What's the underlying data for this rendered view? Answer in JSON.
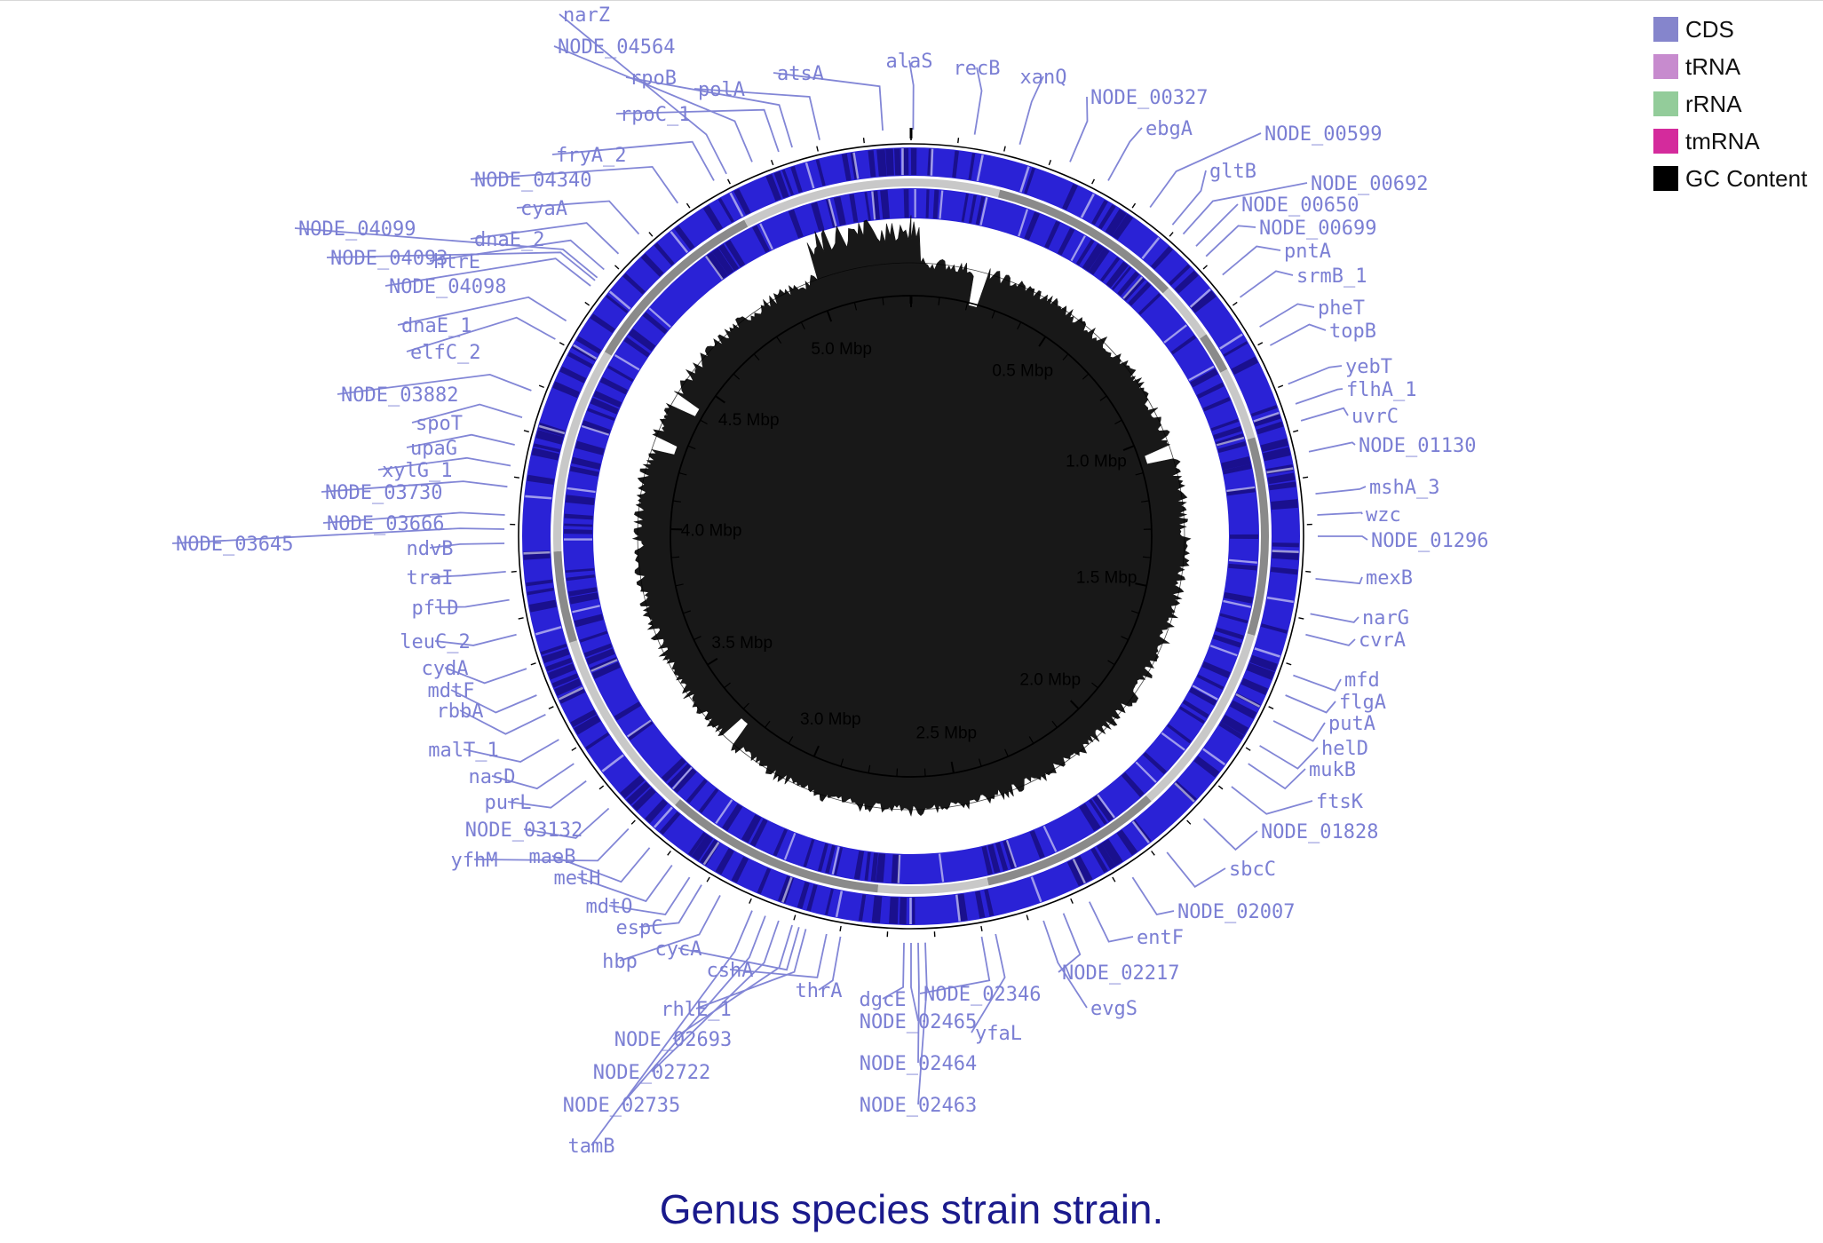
{
  "title": "Genus species strain strain.",
  "legend": [
    {
      "label": "CDS",
      "color": "#8585cc"
    },
    {
      "label": "tRNA",
      "color": "#c78bce"
    },
    {
      "label": "rRNA",
      "color": "#93cc9a"
    },
    {
      "label": "tmRNA",
      "color": "#d42b9c"
    },
    {
      "label": "GC Content",
      "color": "#000000"
    }
  ],
  "colors": {
    "cds_track": "#2a22d6",
    "cds_dark": "#1a108e",
    "gc": "#000000",
    "contig_light": "#c8c8c8",
    "contig_dark": "#8a8a8a",
    "label": "#7b7fd4"
  },
  "genome_size_mbp": 5.3,
  "ruler_labels": [
    "0.5 Mbp",
    "1.0 Mbp",
    "1.5 Mbp",
    "2.0 Mbp",
    "2.5 Mbp",
    "3.0 Mbp",
    "3.5 Mbp",
    "4.0 Mbp",
    "4.5 Mbp",
    "5.0 Mbp"
  ],
  "gene_labels": [
    "alaS",
    "recB",
    "xanQ",
    "NODE_00327",
    "ebgA",
    "NODE_00599",
    "gltB",
    "NODE_00692",
    "NODE_00650",
    "NODE_00699",
    "pntA",
    "srmB_1",
    "pheT",
    "topB",
    "yebT",
    "flhA_1",
    "uvrC",
    "NODE_01130",
    "mshA_3",
    "wzc",
    "NODE_01296",
    "mexB",
    "narG",
    "cvrA",
    "mfd",
    "flgA",
    "putA",
    "helD",
    "mukB",
    "ftsK",
    "NODE_01828",
    "sbcC",
    "NODE_02007",
    "entF",
    "NODE_02217",
    "evgS",
    "yfaL",
    "NODE_02346",
    "NODE_02463",
    "NODE_02464",
    "NODE_02465",
    "dgcE",
    "thrA",
    "tamB",
    "NODE_02735",
    "NODE_02722",
    "NODE_02693",
    "rhlE_1",
    "cshA",
    "cycA",
    "hbp",
    "espC",
    "mdtO",
    "metH",
    "maeB",
    "yfhM",
    "NODE_03132",
    "purL",
    "nasD",
    "malT_1",
    "rbbA",
    "mdtF",
    "cydA",
    "leuC_2",
    "pflD",
    "traI",
    "ndvB",
    "NODE_03645",
    "NODE_03666",
    "NODE_03730",
    "xylG_1",
    "upaG",
    "spoT",
    "NODE_03882",
    "elfC_2",
    "dnaE_1",
    "NODE_04098",
    "NODE_04093",
    "NODE_04099",
    "htrE",
    "dnaE_2",
    "cyaA",
    "NODE_04340",
    "fryA_2",
    "rpoC_1",
    "rpoB",
    "polA",
    "NODE_04564",
    "narZ",
    "atsA"
  ]
}
